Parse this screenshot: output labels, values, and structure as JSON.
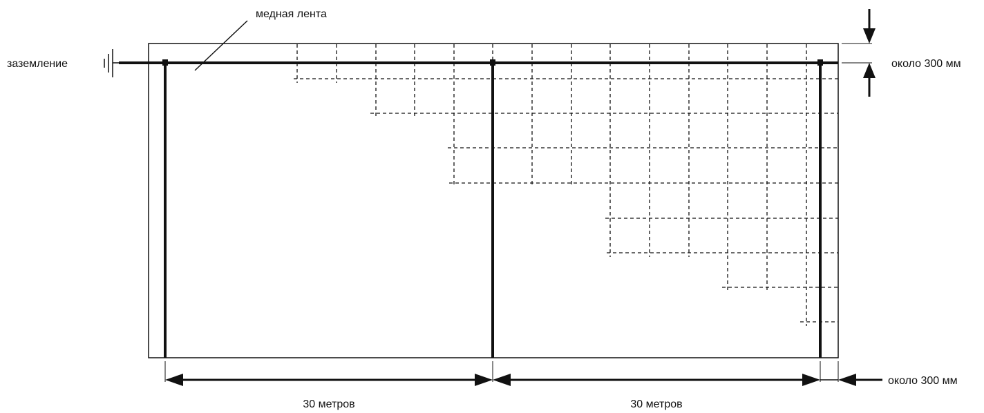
{
  "labels": {
    "copper_tape": "медная лента",
    "grounding": "заземление",
    "spacing_top": "около 300 мм",
    "spacing_bottom": "около 300 мм",
    "span_left": "30 метров",
    "span_right": "30 метров"
  },
  "colors": {
    "line": "#111111",
    "background": "#ffffff"
  }
}
